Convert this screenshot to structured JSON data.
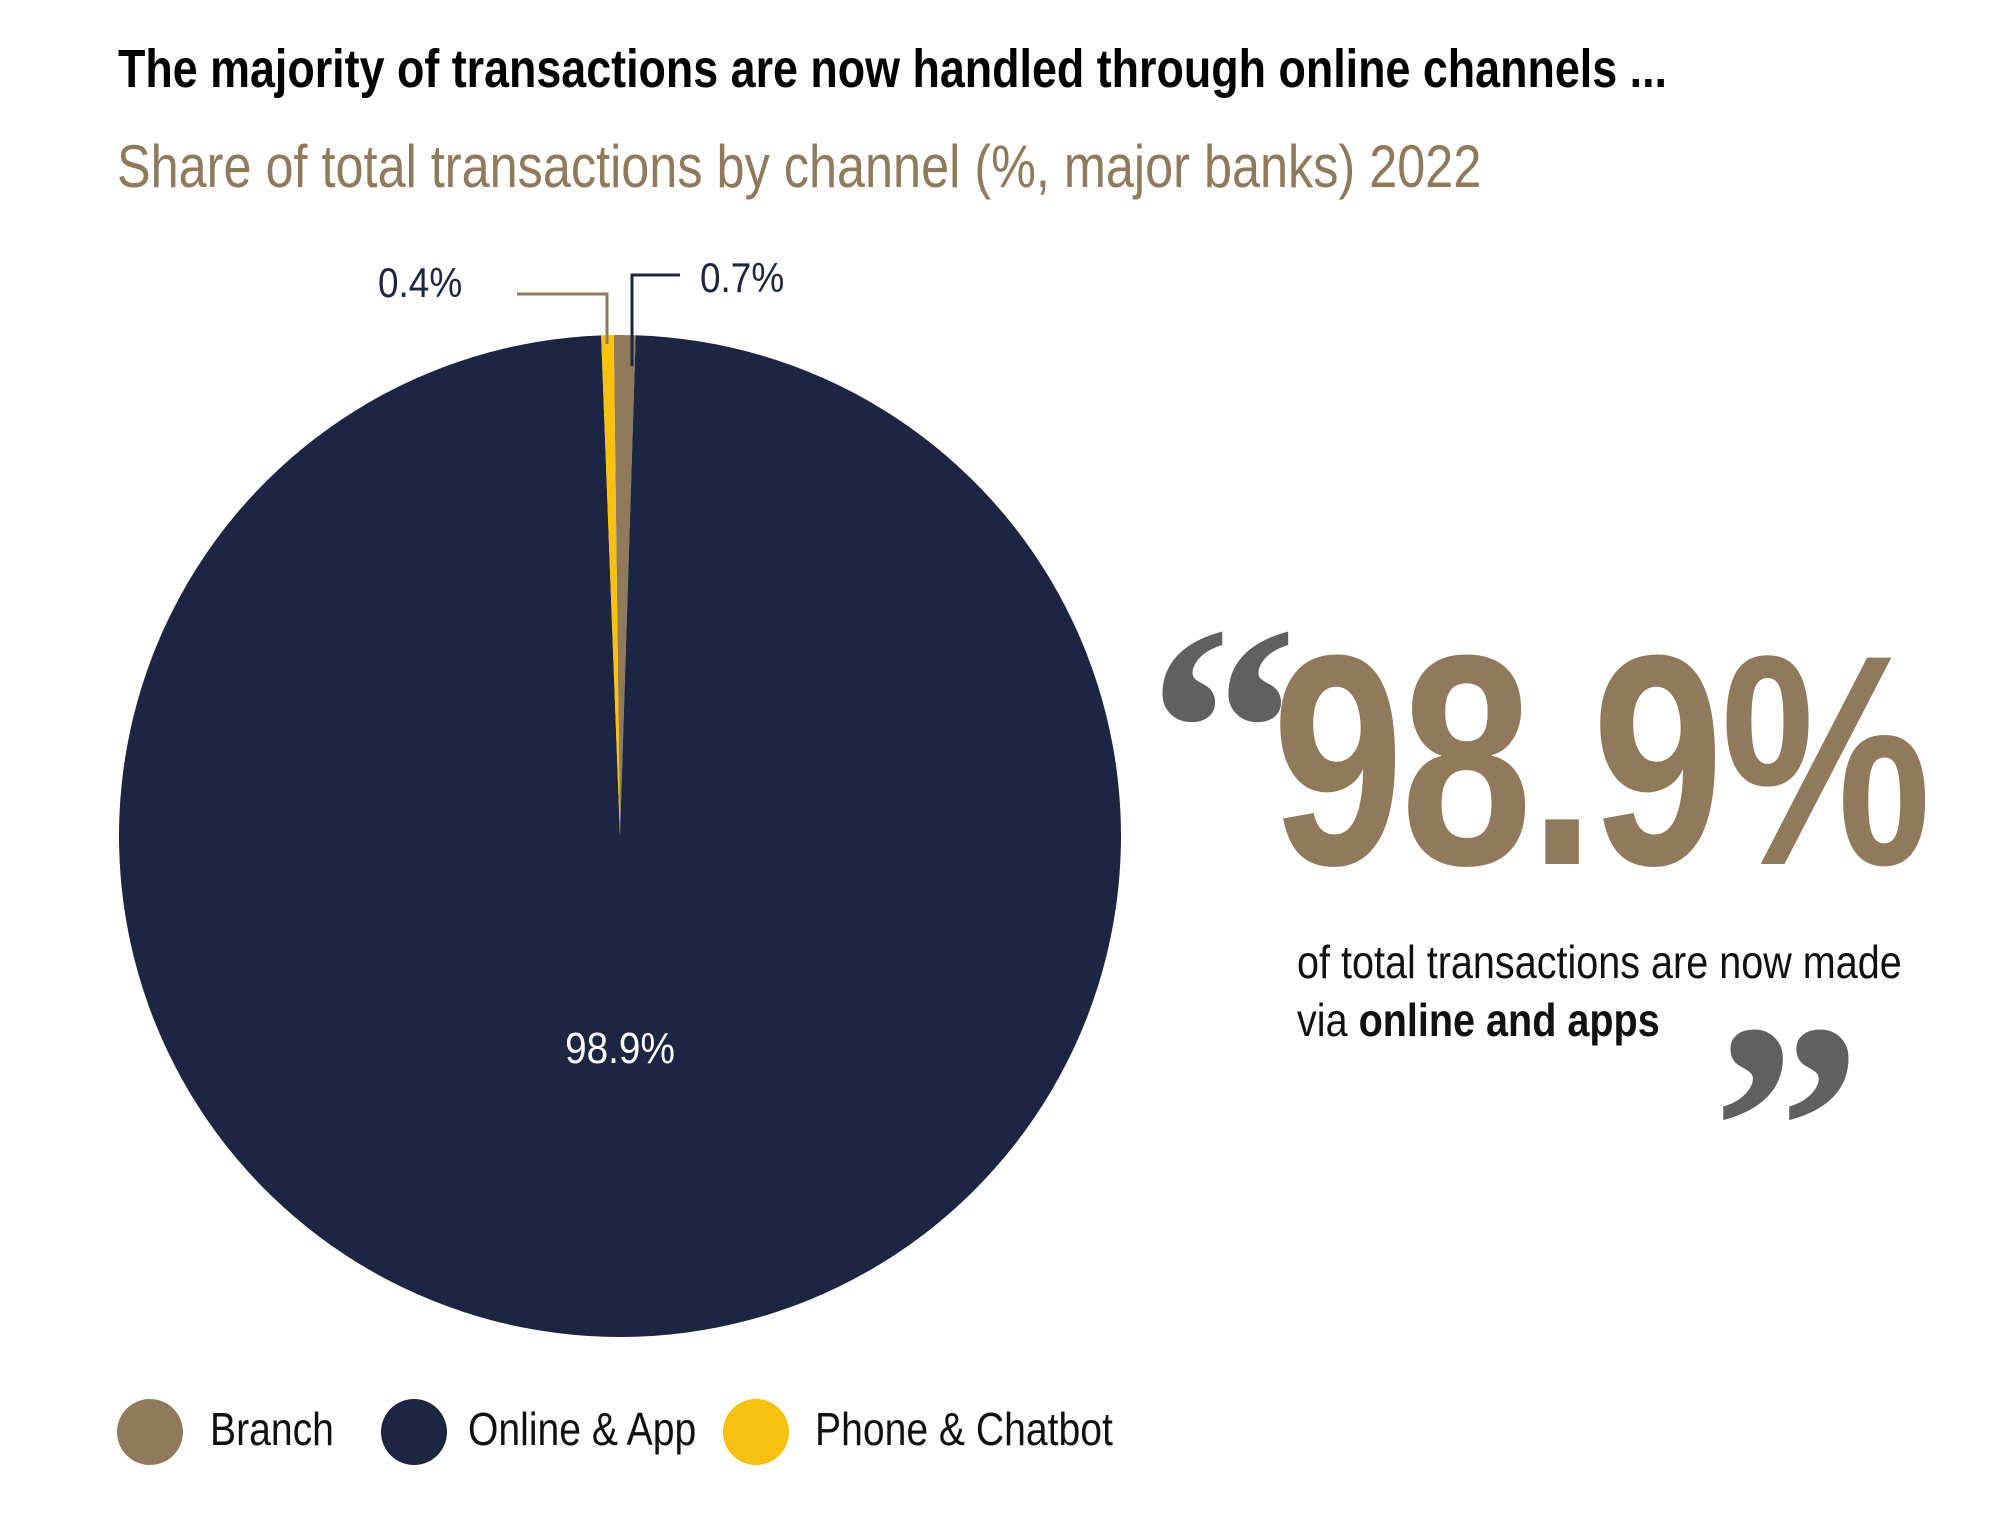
{
  "title": "The majority of transactions are now handled through online channels ...",
  "subtitle": "Share of total transactions by channel (%, major banks) 2022",
  "chart_data": {
    "type": "pie",
    "title": "The majority of transactions are now handled through online channels ...",
    "subtitle": "Share of total transactions by channel (%, major banks) 2022",
    "slices": [
      {
        "name": "Branch",
        "value": 0.7,
        "label": "0.7%",
        "color": "#917a5c"
      },
      {
        "name": "Online & App",
        "value": 98.9,
        "label": "98.9%",
        "color": "#1c2541"
      },
      {
        "name": "Phone & Chatbot",
        "value": 0.4,
        "label": "0.4%",
        "color": "#f9c10f"
      }
    ],
    "legend_position": "bottom-left"
  },
  "callout": {
    "value": "98.9%",
    "line1": "of total transactions are now made",
    "line2_prefix": "via ",
    "line2_bold": "online and apps",
    "open_quote": "“",
    "close_quote": "”"
  },
  "legend": [
    {
      "label": "Branch",
      "color": "#917a5c"
    },
    {
      "label": "Online & App",
      "color": "#1c2541"
    },
    {
      "label": "Phone & Chatbot",
      "color": "#f9c10f"
    }
  ]
}
